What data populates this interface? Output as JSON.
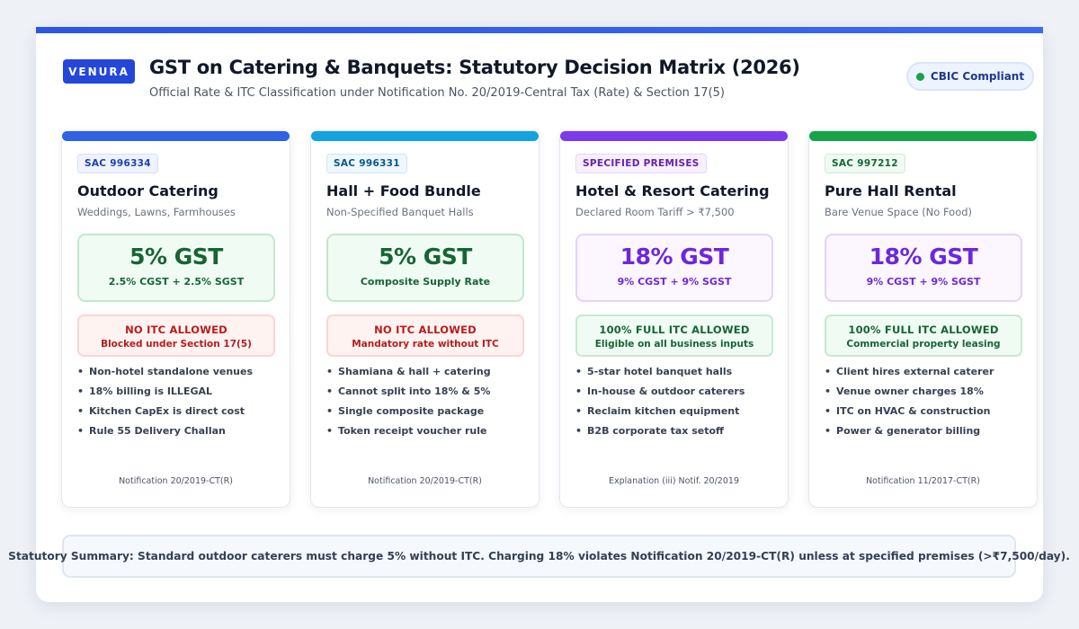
{
  "header": {
    "brand": "VENURA",
    "title": "GST on Catering & Banquets: Statutory Decision Matrix (2026)",
    "subtitle": "Official Rate & ITC Classification under Notification No. 20/2019-Central Tax (Rate) & Section 17(5)",
    "badge": "CBIC Compliant"
  },
  "colors": {
    "accent": "#2c56e6",
    "card_bars": [
      "#2f62e4",
      "#13a3e0",
      "#7c3aed",
      "#16a34a"
    ],
    "rate_green": "#166534",
    "rate_purple": "#6d28d9",
    "itc_blocked": "#b91c1c",
    "itc_allowed": "#166534"
  },
  "cards": [
    {
      "sac": "SAC 996334",
      "title": "Outdoor Catering",
      "subtitle": "Weddings, Lawns, Farmhouses",
      "rate": "5% GST",
      "split": "2.5% CGST + 2.5% SGST",
      "itc_title": "NO ITC ALLOWED",
      "itc_sub": "Blocked under Section 17(5)",
      "bullets": [
        "Non-hotel standalone venues",
        "18% billing is ILLEGAL",
        "Kitchen CapEx is direct cost",
        "Rule 55 Delivery Challan"
      ],
      "reference": "Notification 20/2019-CT(R)"
    },
    {
      "sac": "SAC 996331",
      "title": "Hall + Food Bundle",
      "subtitle": "Non-Specified Banquet Halls",
      "rate": "5% GST",
      "split": "Composite Supply Rate",
      "itc_title": "NO ITC ALLOWED",
      "itc_sub": "Mandatory rate without ITC",
      "bullets": [
        "Shamiana & hall + catering",
        "Cannot split into 18% & 5%",
        "Single composite package",
        "Token receipt voucher rule"
      ],
      "reference": "Notification 20/2019-CT(R)"
    },
    {
      "sac": "SPECIFIED PREMISES",
      "title": "Hotel & Resort Catering",
      "subtitle": "Declared Room Tariff > ₹7,500",
      "rate": "18% GST",
      "split": "9% CGST + 9% SGST",
      "itc_title": "100% FULL ITC ALLOWED",
      "itc_sub": "Eligible on all business inputs",
      "bullets": [
        "5-star hotel banquet halls",
        "In-house & outdoor caterers",
        "Reclaim kitchen equipment",
        "B2B corporate tax setoff"
      ],
      "reference": "Explanation (iii) Notif. 20/2019"
    },
    {
      "sac": "SAC 997212",
      "title": "Pure Hall Rental",
      "subtitle": "Bare Venue Space (No Food)",
      "rate": "18% GST",
      "split": "9% CGST + 9% SGST",
      "itc_title": "100% FULL ITC ALLOWED",
      "itc_sub": "Commercial property leasing",
      "bullets": [
        "Client hires external caterer",
        "Venue owner charges 18%",
        "ITC on HVAC & construction",
        "Power & generator billing"
      ],
      "reference": "Notification 11/2017-CT(R)"
    }
  ],
  "summary": "Statutory Summary: Standard outdoor caterers must charge 5% without ITC. Charging 18% violates Notification 20/2019-CT(R) unless at specified premises (>₹7,500/day)."
}
